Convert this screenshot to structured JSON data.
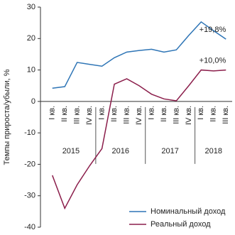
{
  "chart_data": {
    "type": "line",
    "y_label": "Темпы прироста/убыли, %",
    "categories": [
      "I кв.",
      "II кв.",
      "III кв.",
      "IV кв.",
      "I кв.",
      "II кв.",
      "III кв.",
      "IV кв.",
      "I кв.",
      "II кв.",
      "III кв.",
      "IV кв.",
      "I кв.",
      "II кв.",
      "III кв."
    ],
    "years": [
      "2015",
      "2016",
      "2017",
      "2018"
    ],
    "series": [
      {
        "name": "Номинальный доход",
        "color": "#2e75b6",
        "values": [
          4.2,
          4.7,
          12.4,
          11.8,
          11.2,
          13.9,
          15.7,
          16.2,
          16.6,
          15.7,
          16.4,
          21,
          25.3,
          22.5,
          19.8
        ]
      },
      {
        "name": "Реальный доход",
        "color": "#8b1e4b",
        "values": [
          -23.5,
          -34,
          -26.5,
          -20.5,
          -15,
          5.5,
          7.2,
          5,
          2.3,
          0.8,
          0.2,
          5,
          10,
          9.7,
          10
        ]
      }
    ],
    "annotations": [
      "+19,8%",
      "+10,0%"
    ],
    "ylim": [
      -40,
      30
    ],
    "yticks": [
      -40,
      -30,
      -20,
      -10,
      0,
      10,
      20,
      30
    ],
    "legend": "bottom-right"
  }
}
